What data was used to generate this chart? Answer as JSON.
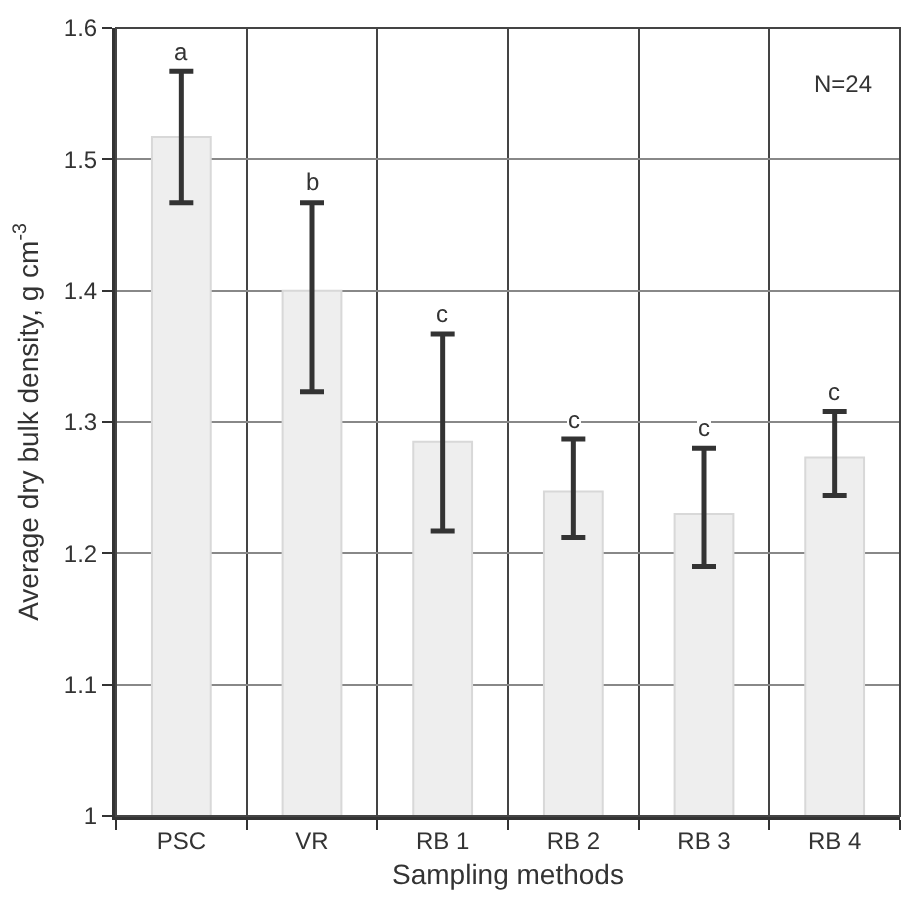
{
  "chart_data": {
    "type": "bar",
    "xlabel": "Sampling methods",
    "ylabel": "Average dry bulk density, g cm$^{-3}$",
    "categories": [
      "PSC",
      "VR",
      "RB 1",
      "RB 2",
      "RB 3",
      "RB 4"
    ],
    "values": [
      1.517,
      1.4,
      1.285,
      1.247,
      1.23,
      1.273
    ],
    "errors": [
      [
        1.467,
        1.567
      ],
      [
        1.323,
        1.467
      ],
      [
        1.217,
        1.367
      ],
      [
        1.212,
        1.287
      ],
      [
        1.19,
        1.28
      ],
      [
        1.244,
        1.308
      ]
    ],
    "color": "#eeeeee",
    "ylim": [
      1,
      1.6
    ],
    "yticks": [
      1,
      1.1,
      1.2,
      1.3,
      1.4,
      1.5,
      1.6
    ],
    "grid": true,
    "annotations": [
      {
        "text": "a",
        "x": "PSC",
        "y": 1.567
      },
      {
        "text": "b",
        "x": "VR",
        "y": 1.467
      },
      {
        "text": "c",
        "x": "RB 1",
        "y": 1.367
      },
      {
        "text": "c",
        "x": "RB 2",
        "y": 1.287
      },
      {
        "text": "c",
        "x": "RB 3",
        "y": 1.28
      },
      {
        "text": "c",
        "x": "RB 4",
        "y": 1.308
      },
      "N=24"
    ]
  }
}
